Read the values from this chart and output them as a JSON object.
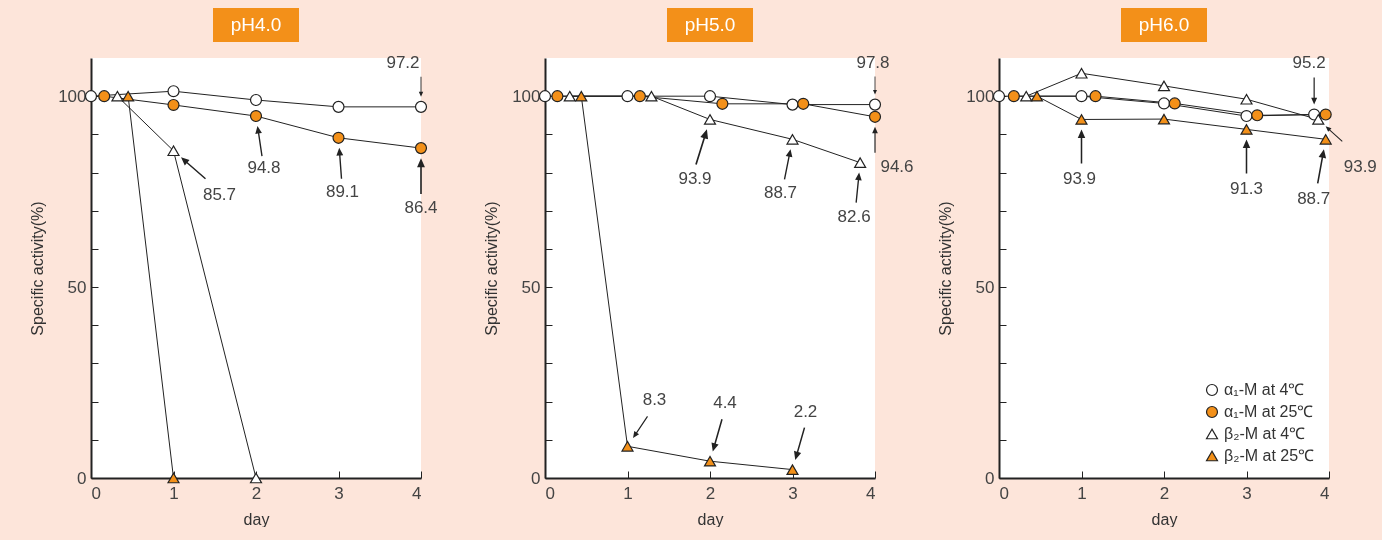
{
  "chart_data": [
    {
      "type": "line",
      "title": "pH4.0",
      "xlabel": "day",
      "ylabel": "Specific activity(%)",
      "xlim": [
        0,
        4
      ],
      "ylim": [
        0,
        110
      ],
      "xticks": [
        0,
        1,
        2,
        3,
        4
      ],
      "yticks": [
        0,
        {
          "value": 10,
          "label": null
        },
        {
          "value": 20,
          "label": null
        },
        {
          "value": 30,
          "label": null
        },
        {
          "value": 40,
          "label": null
        },
        50,
        {
          "value": 60,
          "label": null
        },
        {
          "value": 70,
          "label": null
        },
        {
          "value": 80,
          "label": null
        },
        {
          "value": 90,
          "label": null
        },
        100
      ],
      "series": [
        {
          "color": "#ffffff",
          "marker": "circle",
          "x": [
            0,
            1,
            2,
            3,
            4
          ],
          "values": [
            100,
            101.3,
            99.0,
            97.2,
            97.2
          ]
        },
        {
          "color": "#f39019",
          "marker": "circle",
          "x": [
            0.16,
            1,
            2,
            3,
            4
          ],
          "values": [
            100,
            97.7,
            94.8,
            89.1,
            86.4
          ]
        },
        {
          "color": "#ffffff",
          "marker": "triangle",
          "x": [
            0.32,
            1,
            2
          ],
          "values": [
            100,
            85.7,
            0
          ]
        },
        {
          "color": "#f39019",
          "marker": "triangle",
          "x": [
            0.45,
            1
          ],
          "values": [
            100,
            0
          ]
        }
      ],
      "annotations": [
        {
          "text": "97.2",
          "x": 4,
          "y": 97.2
        },
        {
          "text": "85.7",
          "x": 1,
          "y": 85.7
        },
        {
          "text": "94.8",
          "x": 2,
          "y": 94.8
        },
        {
          "text": "89.1",
          "x": 3,
          "y": 89.1
        },
        {
          "text": "86.4",
          "x": 4,
          "y": 86.4
        }
      ]
    },
    {
      "type": "line",
      "title": "pH5.0",
      "xlabel": "day",
      "ylabel": "Specific activity(%)",
      "xlim": [
        0,
        4
      ],
      "ylim": [
        0,
        110
      ],
      "xticks": [
        0,
        1,
        2,
        3,
        4
      ],
      "yticks": [
        0,
        {
          "value": 10,
          "label": null
        },
        {
          "value": 20,
          "label": null
        },
        {
          "value": 30,
          "label": null
        },
        {
          "value": 40,
          "label": null
        },
        50,
        {
          "value": 60,
          "label": null
        },
        {
          "value": 70,
          "label": null
        },
        {
          "value": 80,
          "label": null
        },
        {
          "value": 90,
          "label": null
        },
        100
      ],
      "series": [
        {
          "color": "#ffffff",
          "marker": "circle",
          "x": [
            0,
            1,
            2,
            3,
            4
          ],
          "values": [
            100,
            100,
            100,
            97.8,
            97.8
          ]
        },
        {
          "color": "#f39019",
          "marker": "circle",
          "x": [
            0.15,
            1.15,
            2.15,
            3.13,
            4
          ],
          "values": [
            100,
            100,
            98.0,
            98.0,
            94.6
          ]
        },
        {
          "color": "#ffffff",
          "marker": "triangle",
          "x": [
            0.3,
            1.29,
            2,
            3,
            3.82
          ],
          "values": [
            100,
            100,
            93.9,
            88.7,
            82.6
          ]
        },
        {
          "color": "#f39019",
          "marker": "triangle",
          "x": [
            0.44,
            1,
            2,
            3
          ],
          "values": [
            100,
            8.3,
            4.4,
            2.2
          ]
        }
      ],
      "annotations": [
        {
          "text": "97.8",
          "x": 4,
          "y": 97.8
        },
        {
          "text": "94.6",
          "x": 4,
          "y": 94.6
        },
        {
          "text": "93.9",
          "x": 2,
          "y": 93.9
        },
        {
          "text": "88.7",
          "x": 3,
          "y": 88.7
        },
        {
          "text": "82.6",
          "x": 3.82,
          "y": 82.6
        },
        {
          "text": "8.3",
          "x": 1,
          "y": 8.3
        },
        {
          "text": "4.4",
          "x": 2,
          "y": 4.4
        },
        {
          "text": "2.2",
          "x": 3,
          "y": 2.2
        }
      ]
    },
    {
      "type": "line",
      "title": "pH6.0",
      "xlabel": "day",
      "ylabel": "Specific activity(%)",
      "xlim": [
        0,
        4
      ],
      "ylim": [
        0,
        110
      ],
      "xticks": [
        0,
        1,
        2,
        3,
        4
      ],
      "yticks": [
        0,
        {
          "value": 10,
          "label": null
        },
        {
          "value": 20,
          "label": null
        },
        {
          "value": 30,
          "label": null
        },
        {
          "value": 40,
          "label": null
        },
        50,
        {
          "value": 60,
          "label": null
        },
        {
          "value": 70,
          "label": null
        },
        {
          "value": 80,
          "label": null
        },
        {
          "value": 90,
          "label": null
        },
        100
      ],
      "legend": "bottom right",
      "series": [
        {
          "name": "α₁-M at 4℃",
          "color": "#ffffff",
          "marker": "circle",
          "x": [
            0,
            1,
            2,
            3,
            3.82
          ],
          "values": [
            100,
            100,
            98.1,
            94.8,
            95.2
          ]
        },
        {
          "name": "α₁-M at 25℃",
          "color": "#f39019",
          "marker": "circle",
          "x": [
            0.18,
            1.17,
            2.13,
            3.13,
            3.96
          ],
          "values": [
            100,
            100,
            98.1,
            95.0,
            95.2
          ]
        },
        {
          "name": "β₂-M at 4℃",
          "color": "#ffffff",
          "marker": "triangle",
          "x": [
            0.33,
            1,
            2,
            3,
            3.87
          ],
          "values": [
            100,
            106.0,
            102.7,
            99.2,
            93.9
          ]
        },
        {
          "name": "β₂-M at 25℃",
          "color": "#f39019",
          "marker": "triangle",
          "x": [
            0.46,
            1,
            2,
            3,
            3.96
          ],
          "values": [
            100,
            93.9,
            94.0,
            91.3,
            88.7
          ]
        }
      ],
      "annotations": [
        {
          "text": "95.2",
          "x": 3.82,
          "y": 95.2
        },
        {
          "text": "93.9",
          "x": 3.87,
          "y": 93.9
        },
        {
          "text": "93.9",
          "x": 1,
          "y": 93.9
        },
        {
          "text": "91.3",
          "x": 3,
          "y": 91.3
        },
        {
          "text": "88.7",
          "x": 3.96,
          "y": 88.7
        }
      ]
    }
  ]
}
